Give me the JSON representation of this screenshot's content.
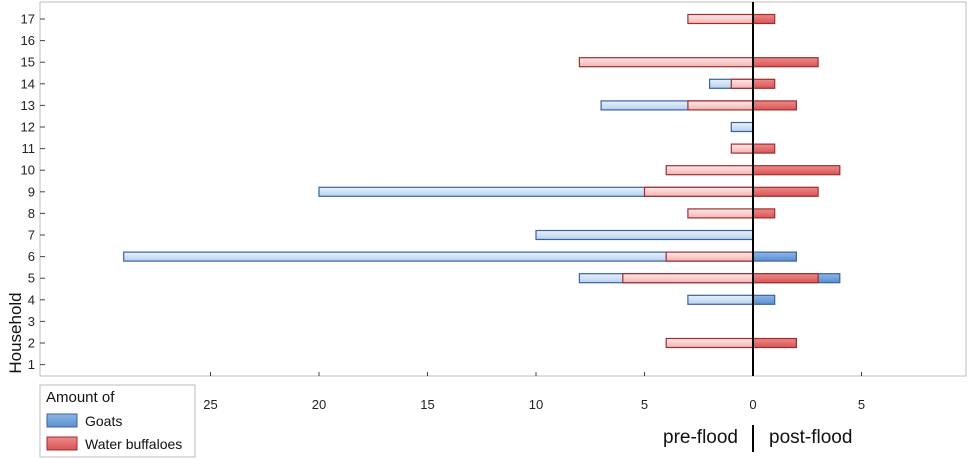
{
  "chart_data": {
    "type": "bar",
    "orientation": "horizontal",
    "ylabel": "Household",
    "categories": [
      "1",
      "2",
      "3",
      "4",
      "5",
      "6",
      "7",
      "8",
      "9",
      "10",
      "11",
      "12",
      "13",
      "14",
      "15",
      "16",
      "17"
    ],
    "x_ticks": [
      "25",
      "20",
      "15",
      "10",
      "5",
      "0",
      "5"
    ],
    "xlim": [
      -29,
      9.5
    ],
    "side_labels": {
      "left": "pre-flood",
      "right": "post-flood"
    },
    "legend": {
      "title": "Amount of",
      "placement": "bottom-left"
    },
    "series": [
      {
        "name": "Goats",
        "color": "#6f9fd8",
        "pre": [
          0,
          0,
          0,
          -3,
          -8,
          -29,
          -10,
          0,
          -20,
          0,
          0,
          -1,
          -7,
          -2,
          0,
          0,
          0
        ],
        "post": [
          0,
          0,
          0,
          1,
          4,
          2,
          0,
          0,
          0,
          0,
          0,
          0,
          0,
          0,
          0,
          0,
          0
        ]
      },
      {
        "name": "Water buffaloes",
        "color": "#e06666",
        "pre": [
          0,
          -4,
          0,
          0,
          -6,
          -4,
          0,
          -3,
          -5,
          -4,
          -1,
          0,
          -3,
          -1,
          -8,
          0,
          -3
        ],
        "post": [
          0,
          2,
          0,
          0,
          3,
          0,
          0,
          1,
          3,
          4,
          1,
          0,
          2,
          1,
          3,
          0,
          1
        ]
      }
    ]
  }
}
